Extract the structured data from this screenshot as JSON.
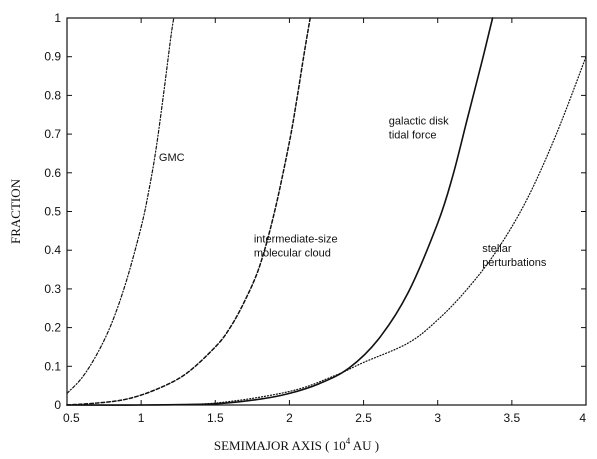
{
  "chart_data": {
    "type": "line",
    "title": "",
    "xlabel": "SEMIMAJOR AXIS ( 10",
    "xlabel_superscript": "4",
    "xlabel_unit": " AU )",
    "ylabel": "FRACTION",
    "xlim": [
      0.5,
      4
    ],
    "ylim": [
      0,
      1
    ],
    "xticks": [
      "0.5",
      "1",
      "1.5",
      "2",
      "2.5",
      "3",
      "3.5",
      "4"
    ],
    "yticks": [
      "0",
      "0.1",
      "0.2",
      "0.3",
      "0.4",
      "0.5",
      "0.6",
      "0.7",
      "0.8",
      "0.9",
      "1"
    ],
    "grid": false,
    "legend": "none",
    "series": [
      {
        "style": "dash-dot",
        "x": [
          0.5,
          0.6,
          0.7,
          0.8,
          0.9,
          1.0,
          1.05,
          1.1,
          1.15,
          1.2,
          1.22
        ],
        "y": [
          0.03,
          0.07,
          0.13,
          0.21,
          0.32,
          0.46,
          0.55,
          0.66,
          0.8,
          0.95,
          1.0
        ]
      },
      {
        "style": "dashed",
        "x": [
          0.5,
          0.7,
          0.9,
          1.1,
          1.3,
          1.5,
          1.6,
          1.7,
          1.8,
          1.9,
          2.0,
          2.05,
          2.1,
          2.14
        ],
        "y": [
          0.0,
          0.005,
          0.015,
          0.04,
          0.08,
          0.15,
          0.2,
          0.27,
          0.36,
          0.5,
          0.68,
          0.79,
          0.91,
          1.0
        ]
      },
      {
        "style": "solid",
        "x": [
          0.5,
          1.0,
          1.5,
          1.8,
          2.0,
          2.2,
          2.4,
          2.6,
          2.8,
          3.0,
          3.1,
          3.2,
          3.3,
          3.37
        ],
        "y": [
          0.0,
          0.0,
          0.003,
          0.015,
          0.03,
          0.055,
          0.095,
          0.17,
          0.29,
          0.47,
          0.59,
          0.74,
          0.89,
          1.0
        ]
      },
      {
        "style": "dotted",
        "x": [
          0.5,
          1.0,
          1.5,
          2.0,
          2.3,
          2.5,
          2.8,
          3.0,
          3.2,
          3.4,
          3.6,
          3.8,
          4.0
        ],
        "y": [
          0.0,
          0.0,
          0.005,
          0.035,
          0.075,
          0.11,
          0.16,
          0.22,
          0.3,
          0.4,
          0.53,
          0.7,
          0.9
        ]
      }
    ],
    "annotations": [
      {
        "lines": [
          "GMC"
        ],
        "x": 1.12,
        "y": 0.63
      },
      {
        "lines": [
          "intermediate-size",
          "molecular cloud"
        ],
        "x": 1.76,
        "y": 0.42
      },
      {
        "lines": [
          "galactic disk",
          "tidal force"
        ],
        "x": 2.67,
        "y": 0.725
      },
      {
        "lines": [
          "stellar",
          "perturbations"
        ],
        "x": 3.3,
        "y": 0.395
      }
    ],
    "colors": {
      "line": "#111111",
      "axis": "#111111",
      "background": "#ffffff"
    }
  }
}
